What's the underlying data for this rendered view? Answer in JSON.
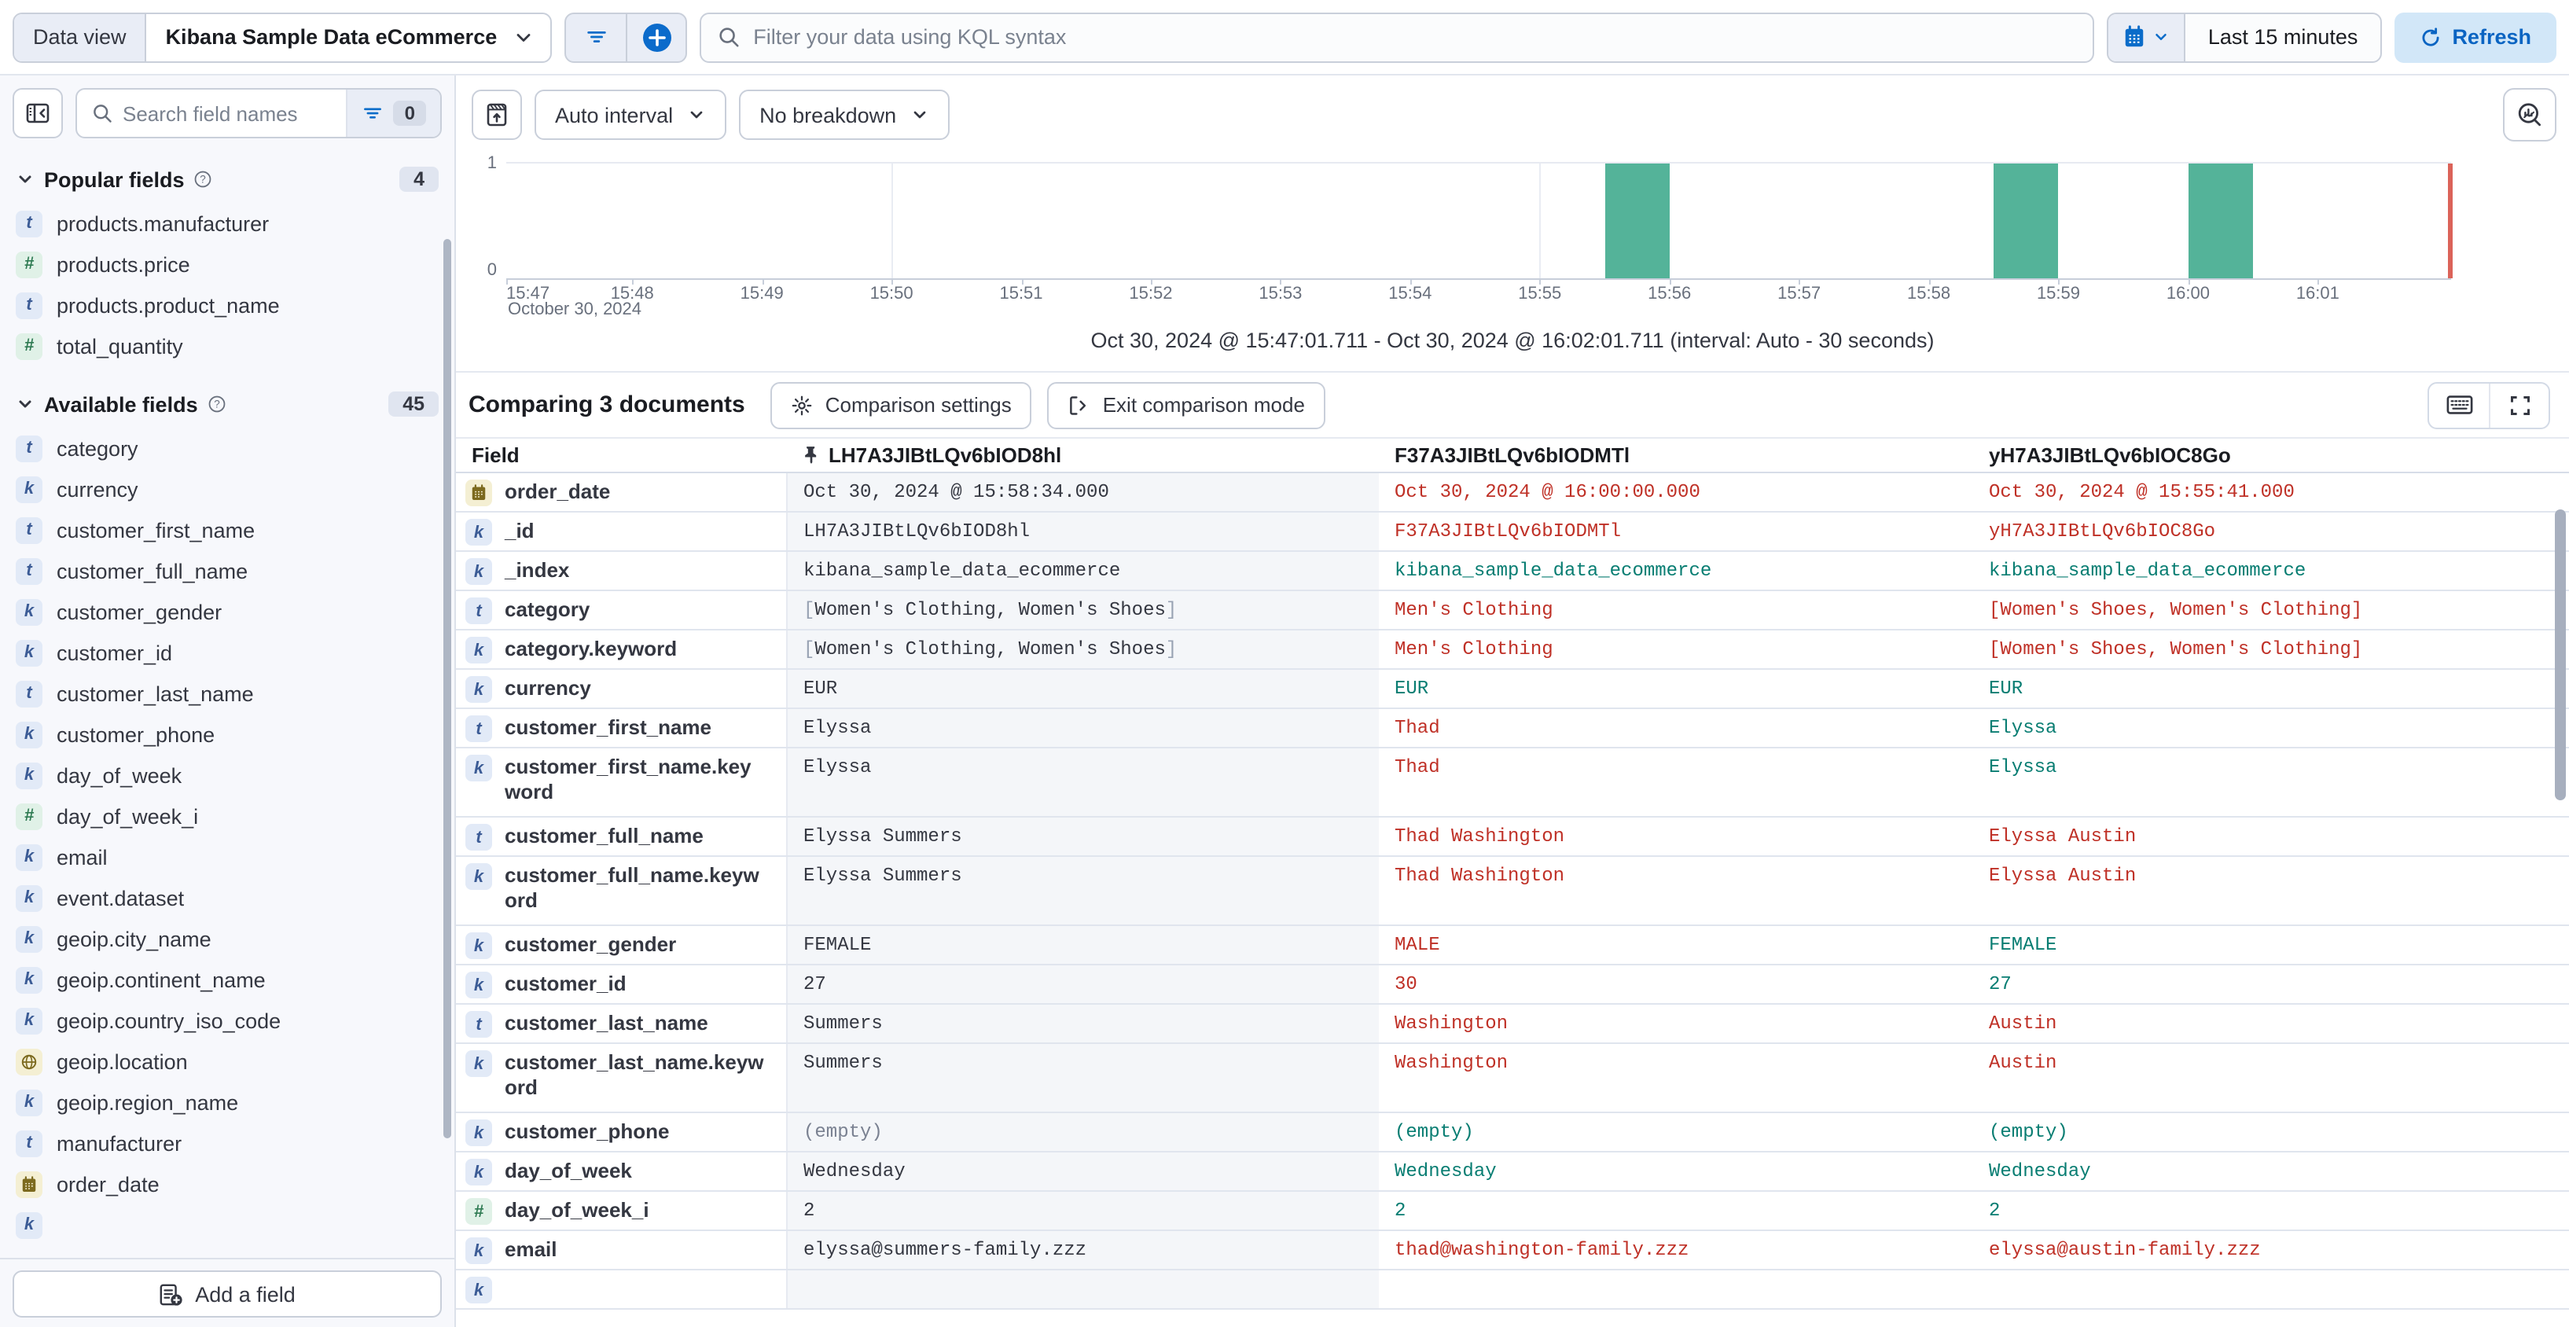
{
  "topbar": {
    "dataview_label": "Data view",
    "dataview_value": "Kibana Sample Data eCommerce",
    "query_placeholder": "Filter your data using KQL syntax",
    "time_range": "Last 15 minutes",
    "refresh_label": "Refresh"
  },
  "sidebar": {
    "search_placeholder": "Search field names",
    "filter_count": "0",
    "popular": {
      "title": "Popular fields",
      "count": "4",
      "items": [
        {
          "type": "t",
          "label": "products.manufacturer"
        },
        {
          "type": "num",
          "label": "products.price"
        },
        {
          "type": "t",
          "label": "products.product_name"
        },
        {
          "type": "num",
          "label": "total_quantity"
        }
      ]
    },
    "available": {
      "title": "Available fields",
      "count": "45",
      "items": [
        {
          "type": "t",
          "label": "category"
        },
        {
          "type": "k",
          "label": "currency"
        },
        {
          "type": "t",
          "label": "customer_first_name"
        },
        {
          "type": "t",
          "label": "customer_full_name"
        },
        {
          "type": "k",
          "label": "customer_gender"
        },
        {
          "type": "k",
          "label": "customer_id"
        },
        {
          "type": "t",
          "label": "customer_last_name"
        },
        {
          "type": "k",
          "label": "customer_phone"
        },
        {
          "type": "k",
          "label": "day_of_week"
        },
        {
          "type": "num",
          "label": "day_of_week_i"
        },
        {
          "type": "k",
          "label": "email"
        },
        {
          "type": "k",
          "label": "event.dataset"
        },
        {
          "type": "k",
          "label": "geoip.city_name"
        },
        {
          "type": "k",
          "label": "geoip.continent_name"
        },
        {
          "type": "k",
          "label": "geoip.country_iso_code"
        },
        {
          "type": "geo",
          "label": "geoip.location"
        },
        {
          "type": "k",
          "label": "geoip.region_name"
        },
        {
          "type": "t",
          "label": "manufacturer"
        },
        {
          "type": "date",
          "label": "order_date"
        },
        {
          "type": "k",
          "label": ""
        }
      ]
    },
    "add_field_label": "Add a field"
  },
  "chart_controls": {
    "interval_label": "Auto interval",
    "breakdown_label": "No breakdown"
  },
  "chart_data": {
    "type": "bar",
    "x_axis_date_label": "October 30, 2024",
    "x_domain": [
      "15:47:01.711",
      "16:02:01.711"
    ],
    "x_ticks": [
      "15:47",
      "15:48",
      "15:49",
      "15:50",
      "15:51",
      "15:52",
      "15:53",
      "15:54",
      "15:55",
      "15:56",
      "15:57",
      "15:58",
      "15:59",
      "16:00",
      "16:01"
    ],
    "y_ticks": [
      "0",
      "1"
    ],
    "ylim": [
      0,
      1
    ],
    "bucket_seconds": 30,
    "bars": [
      {
        "start": "15:55:30",
        "count": 1
      },
      {
        "start": "15:58:30",
        "count": 1
      },
      {
        "start": "16:00:00",
        "count": 1
      }
    ],
    "gridlines_x": [
      "15:50",
      "15:55",
      "16:00"
    ],
    "bar_color": "#54B399",
    "end_marker_color": "#DB6359",
    "legend": "off"
  },
  "chart_caption": "Oct 30, 2024 @ 15:47:01.711 - Oct 30, 2024 @ 16:02:01.711 (interval: Auto - 30 seconds)",
  "comparison": {
    "title": "Comparing 3 documents",
    "settings_label": "Comparison settings",
    "exit_label": "Exit comparison mode"
  },
  "table": {
    "field_header": "Field",
    "columns": [
      {
        "id": "LH7A3JIBtLQv6bIOD8hl",
        "pinned": true
      },
      {
        "id": "F37A3JIBtLQv6bIODMTl",
        "pinned": false
      },
      {
        "id": "yH7A3JIBtLQv6bIOC8Go",
        "pinned": false
      }
    ],
    "rows": [
      {
        "field": "order_date",
        "type": "date",
        "tall": false,
        "cells": [
          {
            "t": "Oct 30, 2024 @ 15:58:34.000",
            "c": "base"
          },
          {
            "t": "Oct 30, 2024 @ 16:00:00.000",
            "c": "diff"
          },
          {
            "t": "Oct 30, 2024 @ 15:55:41.000",
            "c": "diff"
          }
        ]
      },
      {
        "field": "_id",
        "type": "k",
        "tall": false,
        "cells": [
          {
            "t": "LH7A3JIBtLQv6bIOD8hl",
            "c": "base"
          },
          {
            "t": "F37A3JIBtLQv6bIODMTl",
            "c": "diff"
          },
          {
            "t": "yH7A3JIBtLQv6bIOC8Go",
            "c": "diff"
          }
        ]
      },
      {
        "field": "_index",
        "type": "k",
        "tall": false,
        "cells": [
          {
            "t": "kibana_sample_data_ecommerce",
            "c": "base"
          },
          {
            "t": "kibana_sample_data_ecommerce",
            "c": "same"
          },
          {
            "t": "kibana_sample_data_ecommerce",
            "c": "same"
          }
        ]
      },
      {
        "field": "category",
        "type": "t",
        "tall": false,
        "cells": [
          {
            "t": "Women's Clothing, Women's Shoes",
            "c": "base",
            "br": true
          },
          {
            "t": "Men's Clothing",
            "c": "diff"
          },
          {
            "t": "[Women's Shoes, Women's Clothing]",
            "c": "diff"
          }
        ]
      },
      {
        "field": "category.keyword",
        "type": "k",
        "tall": false,
        "cells": [
          {
            "t": "Women's Clothing, Women's Shoes",
            "c": "base",
            "br": true
          },
          {
            "t": "Men's Clothing",
            "c": "diff"
          },
          {
            "t": "[Women's Shoes, Women's Clothing]",
            "c": "diff"
          }
        ]
      },
      {
        "field": "currency",
        "type": "k",
        "tall": false,
        "cells": [
          {
            "t": "EUR",
            "c": "base"
          },
          {
            "t": "EUR",
            "c": "same"
          },
          {
            "t": "EUR",
            "c": "same"
          }
        ]
      },
      {
        "field": "customer_first_name",
        "type": "t",
        "tall": false,
        "cells": [
          {
            "t": "Elyssa",
            "c": "base"
          },
          {
            "t": "Thad",
            "c": "diff"
          },
          {
            "t": "Elyssa",
            "c": "same"
          }
        ]
      },
      {
        "field": "customer_first_name.keyword",
        "type": "k",
        "tall": true,
        "cells": [
          {
            "t": "Elyssa",
            "c": "base"
          },
          {
            "t": "Thad",
            "c": "diff"
          },
          {
            "t": "Elyssa",
            "c": "same"
          }
        ]
      },
      {
        "field": "customer_full_name",
        "type": "t",
        "tall": false,
        "cells": [
          {
            "t": "Elyssa Summers",
            "c": "base"
          },
          {
            "t": "Thad Washington",
            "c": "diff"
          },
          {
            "t": "Elyssa Austin",
            "c": "diff"
          }
        ]
      },
      {
        "field": "customer_full_name.keyword",
        "type": "k",
        "tall": true,
        "cells": [
          {
            "t": "Elyssa Summers",
            "c": "base"
          },
          {
            "t": "Thad Washington",
            "c": "diff"
          },
          {
            "t": "Elyssa Austin",
            "c": "diff"
          }
        ]
      },
      {
        "field": "customer_gender",
        "type": "k",
        "tall": false,
        "cells": [
          {
            "t": "FEMALE",
            "c": "base"
          },
          {
            "t": "MALE",
            "c": "diff"
          },
          {
            "t": "FEMALE",
            "c": "same"
          }
        ]
      },
      {
        "field": "customer_id",
        "type": "k",
        "tall": false,
        "cells": [
          {
            "t": "27",
            "c": "base"
          },
          {
            "t": "30",
            "c": "diff"
          },
          {
            "t": "27",
            "c": "same"
          }
        ]
      },
      {
        "field": "customer_last_name",
        "type": "t",
        "tall": false,
        "cells": [
          {
            "t": "Summers",
            "c": "base"
          },
          {
            "t": "Washington",
            "c": "diff"
          },
          {
            "t": "Austin",
            "c": "diff"
          }
        ]
      },
      {
        "field": "customer_last_name.keyword",
        "type": "k",
        "tall": true,
        "cells": [
          {
            "t": "Summers",
            "c": "base"
          },
          {
            "t": "Washington",
            "c": "diff"
          },
          {
            "t": "Austin",
            "c": "diff"
          }
        ]
      },
      {
        "field": "customer_phone",
        "type": "k",
        "tall": false,
        "cells": [
          {
            "t": "(empty)",
            "c": "empty"
          },
          {
            "t": "(empty)",
            "c": "same"
          },
          {
            "t": "(empty)",
            "c": "same"
          }
        ]
      },
      {
        "field": "day_of_week",
        "type": "k",
        "tall": false,
        "cells": [
          {
            "t": "Wednesday",
            "c": "base"
          },
          {
            "t": "Wednesday",
            "c": "same"
          },
          {
            "t": "Wednesday",
            "c": "same"
          }
        ]
      },
      {
        "field": "day_of_week_i",
        "type": "num",
        "tall": false,
        "cells": [
          {
            "t": "2",
            "c": "base"
          },
          {
            "t": "2",
            "c": "same"
          },
          {
            "t": "2",
            "c": "same"
          }
        ]
      },
      {
        "field": "email",
        "type": "k",
        "tall": false,
        "cells": [
          {
            "t": "elyssa@summers-family.zzz",
            "c": "base"
          },
          {
            "t": "thad@washington-family.zzz",
            "c": "diff"
          },
          {
            "t": "elyssa@austin-family.zzz",
            "c": "diff"
          }
        ]
      },
      {
        "field": "",
        "type": "k",
        "tall": false,
        "cells": [
          {
            "t": "",
            "c": "base"
          },
          {
            "t": "",
            "c": "base"
          },
          {
            "t": "",
            "c": "base"
          }
        ]
      }
    ]
  },
  "colors": {
    "accent_blue": "#0A6CC9",
    "refresh_bg": "#D2E7F8",
    "bar_teal": "#54B399",
    "diff_red": "#BF3026",
    "match_teal": "#087D72",
    "pinned_col_bg": "#F4F6F9",
    "page_bg": "#F7F8FC"
  }
}
